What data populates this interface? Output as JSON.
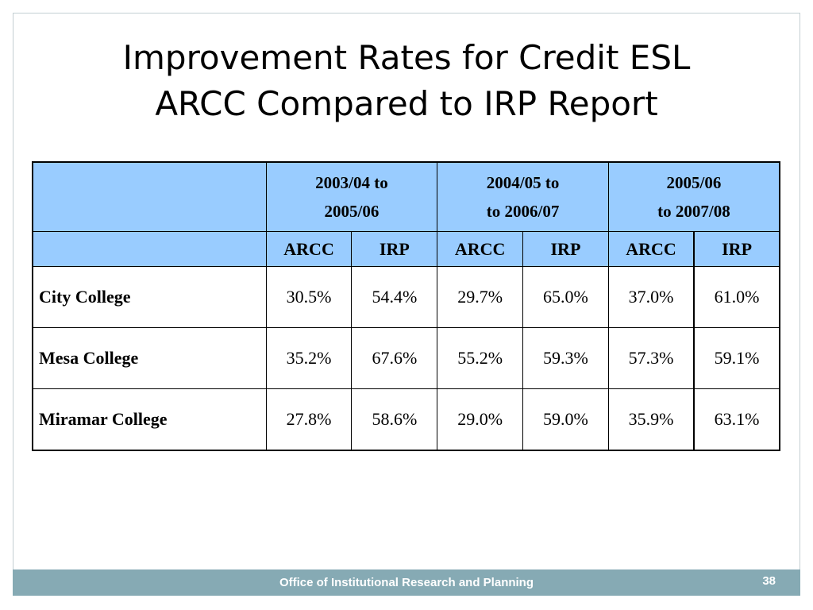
{
  "title": {
    "line1": "Improvement Rates for Credit ESL",
    "line2": "ARCC Compared to IRP Report"
  },
  "table": {
    "periods": [
      {
        "line1": "2003/04 to",
        "line2": "2005/06"
      },
      {
        "line1": "2004/05 to",
        "line2": "to 2006/07"
      },
      {
        "line1": "2005/06",
        "line2": "to 2007/08"
      }
    ],
    "subheaders": [
      "ARCC",
      "IRP",
      "ARCC",
      "IRP",
      "ARCC",
      "IRP"
    ],
    "rows": [
      {
        "name": "City College",
        "values": [
          "30.5%",
          "54.4%",
          "29.7%",
          "65.0%",
          "37.0%",
          "61.0%"
        ]
      },
      {
        "name": "Mesa College",
        "values": [
          "35.2%",
          "67.6%",
          "55.2%",
          "59.3%",
          "57.3%",
          "59.1%"
        ]
      },
      {
        "name": "Miramar College",
        "values": [
          "27.8%",
          "58.6%",
          "29.0%",
          "59.0%",
          "35.9%",
          "63.1%"
        ]
      }
    ],
    "header_color": "#99ccff"
  },
  "footer": {
    "text": "Office of Institutional Research and Planning",
    "page_number": "38",
    "color": "#86aab4"
  }
}
